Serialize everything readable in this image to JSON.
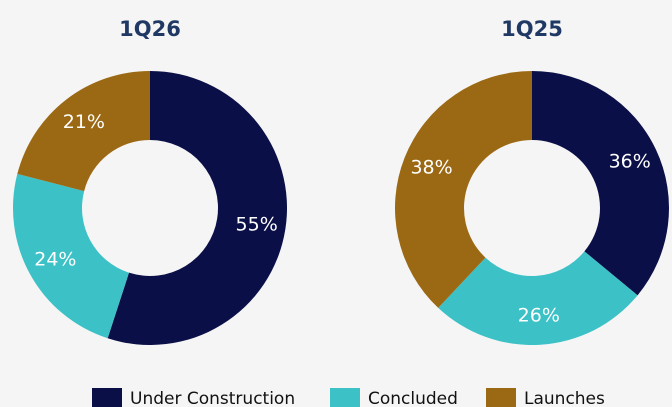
{
  "chart_data": [
    {
      "type": "donut",
      "title": "1Q26",
      "categories": [
        "Under Construction",
        "Concluded",
        "Launches"
      ],
      "values": [
        55,
        24,
        21
      ],
      "value_labels": [
        "55%",
        "24%",
        "21%"
      ],
      "colors": [
        "#0b0f47",
        "#3bc1c6",
        "#9b6914"
      ]
    },
    {
      "type": "donut",
      "title": "1Q25",
      "categories": [
        "Under Construction",
        "Concluded",
        "Launches"
      ],
      "values": [
        36,
        26,
        38
      ],
      "value_labels": [
        "36%",
        "26%",
        "38%"
      ],
      "colors": [
        "#0b0f47",
        "#3bc1c6",
        "#9b6914"
      ]
    }
  ]
}
